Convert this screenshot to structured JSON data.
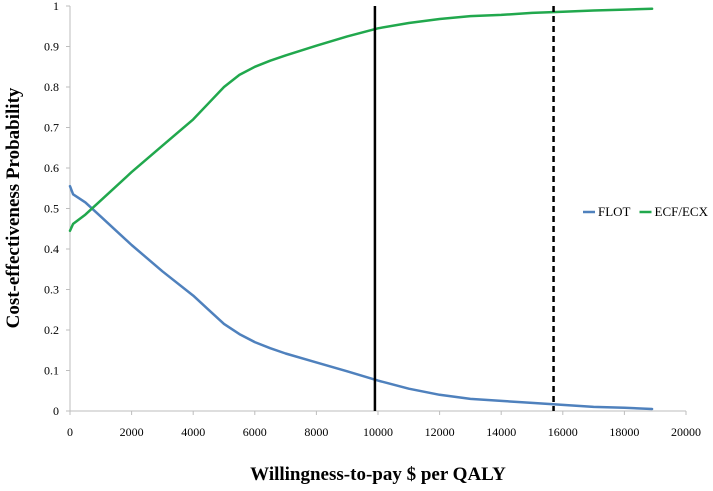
{
  "chart_data": {
    "type": "line",
    "title": "",
    "xlabel": "Willingness-to-pay $ per QALY",
    "ylabel": "Cost-effectiveness Probability",
    "xlim": [
      0,
      20000
    ],
    "ylim": [
      0,
      1
    ],
    "xticks": [
      0,
      2000,
      4000,
      6000,
      8000,
      10000,
      12000,
      14000,
      16000,
      18000,
      20000
    ],
    "yticks": [
      0,
      0.1,
      0.2,
      0.3,
      0.4,
      0.5,
      0.6,
      0.7,
      0.8,
      0.9,
      1
    ],
    "xtick_labels": [
      "0",
      "2000",
      "4000",
      "6000",
      "8000",
      "10000",
      "12000",
      "14000",
      "16000",
      "18000",
      "20000"
    ],
    "ytick_labels": [
      "0",
      "0.1",
      "0.2",
      "0.3",
      "0.4",
      "0.5",
      "0.6",
      "0.7",
      "0.8",
      "0.9",
      "1"
    ],
    "grid": false,
    "legend_position": "right",
    "series": [
      {
        "name": "FLOT",
        "color": "#4f81bd",
        "x": [
          0,
          100,
          500,
          1000,
          1500,
          2000,
          3000,
          4000,
          4500,
          5000,
          5500,
          6000,
          6500,
          7000,
          8000,
          9000,
          10000,
          11000,
          12000,
          13000,
          14000,
          15000,
          16000,
          17000,
          18000,
          18900
        ],
        "y": [
          0.555,
          0.535,
          0.515,
          0.48,
          0.445,
          0.41,
          0.345,
          0.285,
          0.25,
          0.215,
          0.19,
          0.17,
          0.155,
          0.142,
          0.12,
          0.098,
          0.075,
          0.055,
          0.04,
          0.03,
          0.025,
          0.02,
          0.015,
          0.01,
          0.008,
          0.005
        ]
      },
      {
        "name": "ECF/ECX",
        "color": "#21a84d",
        "x": [
          0,
          100,
          500,
          1000,
          2000,
          3000,
          4000,
          4500,
          5000,
          5500,
          6000,
          6500,
          7000,
          8000,
          9000,
          10000,
          11000,
          12000,
          13000,
          14000,
          15000,
          16000,
          17000,
          18000,
          18900
        ],
        "y": [
          0.445,
          0.462,
          0.485,
          0.52,
          0.59,
          0.655,
          0.72,
          0.76,
          0.8,
          0.83,
          0.85,
          0.865,
          0.878,
          0.902,
          0.925,
          0.945,
          0.958,
          0.968,
          0.975,
          0.978,
          0.983,
          0.986,
          0.989,
          0.991,
          0.993
        ]
      }
    ],
    "reference_lines": [
      {
        "x": 9900,
        "style": "solid",
        "color": "#000000"
      },
      {
        "x": 15700,
        "style": "dashed",
        "color": "#000000"
      }
    ]
  }
}
